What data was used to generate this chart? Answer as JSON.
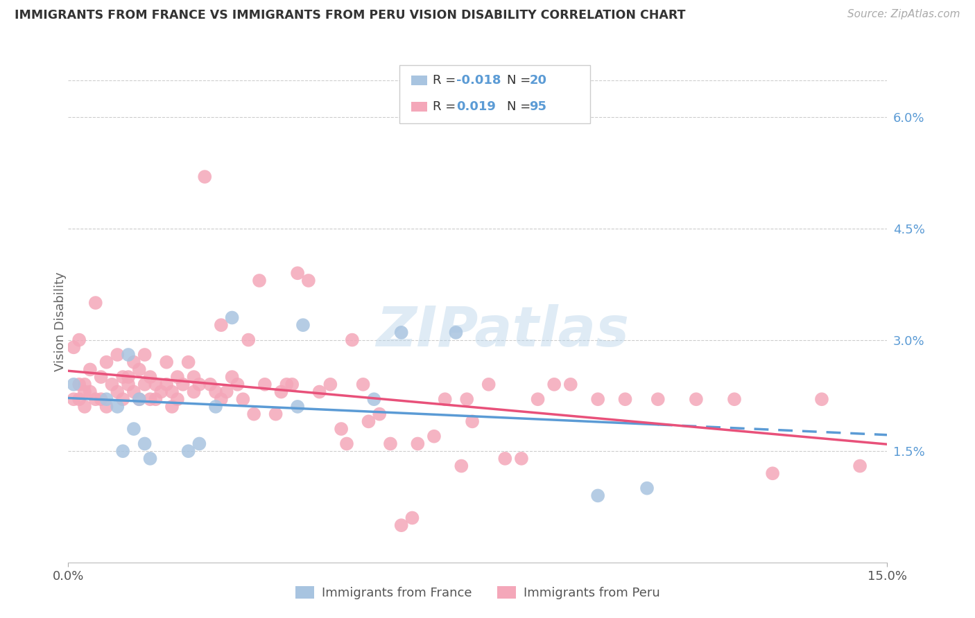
{
  "title": "IMMIGRANTS FROM FRANCE VS IMMIGRANTS FROM PERU VISION DISABILITY CORRELATION CHART",
  "source": "Source: ZipAtlas.com",
  "ylabel": "Vision Disability",
  "yticks": [
    "6.0%",
    "4.5%",
    "3.0%",
    "1.5%"
  ],
  "ytick_vals": [
    0.06,
    0.045,
    0.03,
    0.015
  ],
  "xmin": 0.0,
  "xmax": 0.15,
  "ymin": 0.0,
  "ymax": 0.065,
  "color_france": "#a8c4e0",
  "color_peru": "#f4a7b9",
  "color_trend_france": "#5b9bd5",
  "color_trend_peru": "#e8517a",
  "color_axis_label": "#5b9bd5",
  "france_x": [
    0.001,
    0.007,
    0.009,
    0.01,
    0.011,
    0.012,
    0.013,
    0.014,
    0.015,
    0.022,
    0.024,
    0.027,
    0.03,
    0.042,
    0.043,
    0.056,
    0.061,
    0.071,
    0.097,
    0.106
  ],
  "france_y": [
    0.024,
    0.022,
    0.021,
    0.015,
    0.028,
    0.018,
    0.022,
    0.016,
    0.014,
    0.015,
    0.016,
    0.021,
    0.033,
    0.021,
    0.032,
    0.022,
    0.031,
    0.031,
    0.009,
    0.01
  ],
  "peru_x": [
    0.001,
    0.001,
    0.002,
    0.002,
    0.002,
    0.003,
    0.003,
    0.003,
    0.004,
    0.004,
    0.005,
    0.005,
    0.006,
    0.006,
    0.007,
    0.007,
    0.008,
    0.009,
    0.009,
    0.01,
    0.01,
    0.011,
    0.011,
    0.012,
    0.012,
    0.013,
    0.013,
    0.014,
    0.014,
    0.015,
    0.015,
    0.016,
    0.016,
    0.017,
    0.018,
    0.018,
    0.019,
    0.019,
    0.02,
    0.02,
    0.021,
    0.022,
    0.023,
    0.023,
    0.024,
    0.025,
    0.026,
    0.027,
    0.028,
    0.028,
    0.029,
    0.03,
    0.031,
    0.032,
    0.033,
    0.034,
    0.035,
    0.036,
    0.038,
    0.039,
    0.04,
    0.041,
    0.042,
    0.044,
    0.046,
    0.048,
    0.05,
    0.051,
    0.052,
    0.054,
    0.055,
    0.057,
    0.059,
    0.061,
    0.063,
    0.064,
    0.067,
    0.069,
    0.072,
    0.073,
    0.074,
    0.077,
    0.08,
    0.083,
    0.086,
    0.089,
    0.092,
    0.097,
    0.102,
    0.108,
    0.115,
    0.122,
    0.129,
    0.138,
    0.145
  ],
  "peru_y": [
    0.029,
    0.022,
    0.03,
    0.024,
    0.022,
    0.024,
    0.021,
    0.023,
    0.026,
    0.023,
    0.035,
    0.022,
    0.025,
    0.022,
    0.027,
    0.021,
    0.024,
    0.028,
    0.023,
    0.025,
    0.022,
    0.025,
    0.024,
    0.027,
    0.023,
    0.026,
    0.022,
    0.028,
    0.024,
    0.022,
    0.025,
    0.024,
    0.022,
    0.023,
    0.027,
    0.024,
    0.021,
    0.023,
    0.022,
    0.025,
    0.024,
    0.027,
    0.025,
    0.023,
    0.024,
    0.052,
    0.024,
    0.023,
    0.022,
    0.032,
    0.023,
    0.025,
    0.024,
    0.022,
    0.03,
    0.02,
    0.038,
    0.024,
    0.02,
    0.023,
    0.024,
    0.024,
    0.039,
    0.038,
    0.023,
    0.024,
    0.018,
    0.016,
    0.03,
    0.024,
    0.019,
    0.02,
    0.016,
    0.005,
    0.006,
    0.016,
    0.017,
    0.022,
    0.013,
    0.022,
    0.019,
    0.024,
    0.014,
    0.014,
    0.022,
    0.024,
    0.024,
    0.022,
    0.022,
    0.022,
    0.022,
    0.022,
    0.012,
    0.022,
    0.013
  ]
}
